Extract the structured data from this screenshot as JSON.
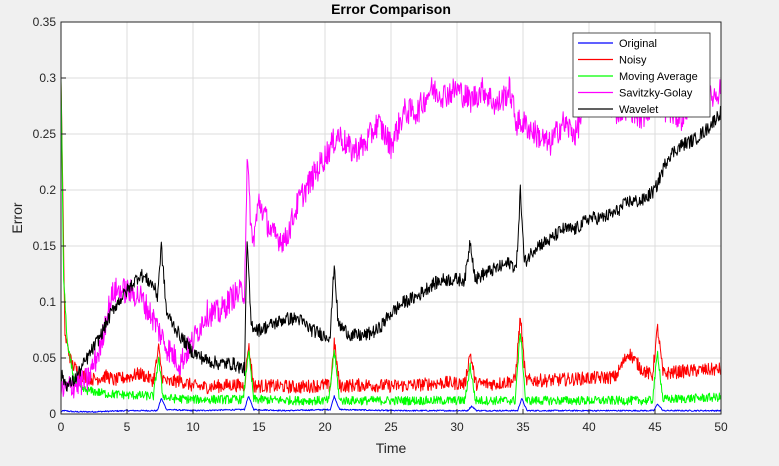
{
  "chart_data": {
    "type": "line",
    "title": "Error Comparison",
    "xlabel": "Time",
    "ylabel": "Error",
    "xlim": [
      0,
      50
    ],
    "ylim": [
      0,
      0.35
    ],
    "xticks": [
      0,
      5,
      10,
      15,
      20,
      25,
      30,
      35,
      40,
      45,
      50
    ],
    "xtick_labels": [
      "0",
      "5",
      "10",
      "15",
      "20",
      "25",
      "30",
      "35",
      "40",
      "45",
      "50"
    ],
    "yticks": [
      0,
      0.05,
      0.1,
      0.15,
      0.2,
      0.25,
      0.3,
      0.35
    ],
    "ytick_labels": [
      "0",
      "0.05",
      "0.1",
      "0.15",
      "0.2",
      "0.25",
      "0.3",
      "0.35"
    ],
    "grid": true,
    "legend_position": "top-right",
    "series": [
      {
        "name": "Original",
        "color": "#0000ff",
        "x": [
          0,
          0.2,
          1,
          2.5,
          5,
          7.3,
          7.6,
          8,
          10,
          13.9,
          14.2,
          14.6,
          17,
          20.4,
          20.7,
          21.1,
          25,
          30.8,
          31.1,
          31.5,
          34.6,
          34.9,
          35.3,
          40,
          44.9,
          45.2,
          45.6,
          50
        ],
        "y": [
          0.002,
          0.003,
          0.002,
          0.002,
          0.003,
          0.003,
          0.014,
          0.004,
          0.003,
          0.004,
          0.016,
          0.004,
          0.003,
          0.004,
          0.016,
          0.004,
          0.003,
          0.003,
          0.007,
          0.003,
          0.003,
          0.014,
          0.003,
          0.003,
          0.003,
          0.009,
          0.003,
          0.003
        ]
      },
      {
        "name": "Noisy",
        "color": "#ff0000",
        "x": [
          0,
          0.3,
          0.8,
          1.5,
          2.5,
          3.5,
          4,
          5,
          6,
          7,
          7.4,
          7.7,
          8.1,
          9,
          10,
          11,
          12,
          13,
          13.9,
          14.2,
          14.6,
          16,
          18,
          20,
          20.4,
          20.7,
          21.1,
          23,
          25,
          27,
          29,
          30.6,
          31,
          31.4,
          33,
          34.4,
          34.8,
          35.2,
          37,
          40,
          42,
          43,
          44,
          44.8,
          45.2,
          45.6,
          47,
          50
        ],
        "y": [
          0.3,
          0.07,
          0.045,
          0.035,
          0.031,
          0.034,
          0.03,
          0.033,
          0.036,
          0.03,
          0.058,
          0.032,
          0.028,
          0.03,
          0.025,
          0.024,
          0.025,
          0.026,
          0.025,
          0.062,
          0.025,
          0.025,
          0.024,
          0.026,
          0.024,
          0.064,
          0.025,
          0.026,
          0.025,
          0.026,
          0.028,
          0.027,
          0.055,
          0.027,
          0.027,
          0.03,
          0.087,
          0.03,
          0.03,
          0.032,
          0.033,
          0.055,
          0.04,
          0.034,
          0.077,
          0.036,
          0.038,
          0.04
        ]
      },
      {
        "name": "Moving Average",
        "color": "#00ff00",
        "x": [
          0,
          0.2,
          0.5,
          1,
          1.5,
          2.5,
          3.5,
          5,
          7,
          7.4,
          7.7,
          8.1,
          10,
          13.8,
          14.2,
          14.6,
          18,
          20.3,
          20.7,
          21.1,
          25,
          30.6,
          31,
          31.4,
          34.4,
          34.8,
          35.2,
          40,
          44.8,
          45.2,
          45.6,
          50
        ],
        "y": [
          0.3,
          0.12,
          0.06,
          0.03,
          0.022,
          0.02,
          0.018,
          0.017,
          0.016,
          0.05,
          0.017,
          0.014,
          0.013,
          0.013,
          0.057,
          0.013,
          0.012,
          0.012,
          0.057,
          0.012,
          0.012,
          0.012,
          0.043,
          0.012,
          0.012,
          0.074,
          0.012,
          0.012,
          0.012,
          0.055,
          0.013,
          0.015
        ]
      },
      {
        "name": "Savitzky-Golay",
        "color": "#ff00ff",
        "x": [
          0,
          0.8,
          2,
          3,
          3.5,
          4,
          5,
          6,
          7,
          8,
          9,
          10,
          11,
          12,
          13,
          13.9,
          14.1,
          14.5,
          15,
          16,
          17,
          18,
          19,
          20,
          21,
          22,
          23,
          24,
          25,
          26,
          27,
          28,
          29,
          30,
          31,
          32,
          33,
          34,
          34.5,
          35,
          36,
          37,
          38,
          39,
          40,
          41,
          42,
          43,
          44,
          45,
          46,
          47,
          48,
          49,
          50
        ],
        "y": [
          0.02,
          0.025,
          0.03,
          0.06,
          0.09,
          0.11,
          0.11,
          0.105,
          0.085,
          0.06,
          0.045,
          0.065,
          0.09,
          0.09,
          0.105,
          0.11,
          0.225,
          0.15,
          0.19,
          0.16,
          0.155,
          0.19,
          0.21,
          0.23,
          0.25,
          0.235,
          0.24,
          0.26,
          0.24,
          0.27,
          0.27,
          0.29,
          0.285,
          0.29,
          0.28,
          0.29,
          0.275,
          0.29,
          0.26,
          0.26,
          0.25,
          0.24,
          0.26,
          0.25,
          0.29,
          0.29,
          0.27,
          0.275,
          0.265,
          0.28,
          0.27,
          0.265,
          0.28,
          0.28,
          0.29
        ]
      },
      {
        "name": "Wavelet",
        "color": "#000000",
        "x": [
          0,
          0.5,
          1,
          2,
          3,
          4,
          5,
          6,
          7,
          7.3,
          7.6,
          8,
          9,
          10,
          11,
          12,
          13,
          13.9,
          14.1,
          14.4,
          15,
          16,
          17,
          18,
          19,
          20,
          20.4,
          20.7,
          21,
          22,
          23,
          24,
          25,
          26,
          27,
          28,
          29,
          30,
          30.6,
          31,
          31.4,
          32,
          33,
          34,
          34.5,
          34.8,
          35.1,
          36,
          37,
          38,
          39,
          40,
          41,
          42,
          43,
          44,
          45,
          46,
          47,
          48,
          49,
          50
        ],
        "y": [
          0.035,
          0.025,
          0.03,
          0.05,
          0.07,
          0.095,
          0.11,
          0.125,
          0.115,
          0.105,
          0.15,
          0.09,
          0.07,
          0.055,
          0.048,
          0.045,
          0.045,
          0.04,
          0.155,
          0.08,
          0.075,
          0.08,
          0.085,
          0.085,
          0.075,
          0.07,
          0.07,
          0.135,
          0.08,
          0.07,
          0.07,
          0.075,
          0.09,
          0.1,
          0.105,
          0.115,
          0.12,
          0.12,
          0.12,
          0.155,
          0.12,
          0.125,
          0.13,
          0.135,
          0.13,
          0.2,
          0.135,
          0.15,
          0.155,
          0.165,
          0.165,
          0.175,
          0.175,
          0.18,
          0.19,
          0.19,
          0.2,
          0.23,
          0.24,
          0.245,
          0.255,
          0.27
        ]
      }
    ]
  }
}
